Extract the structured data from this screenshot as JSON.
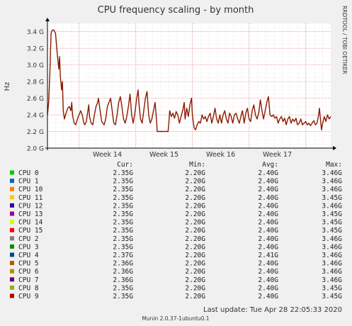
{
  "chart_data": {
    "type": "line",
    "title": "CPU frequency scaling - by month",
    "ylabel": "Hz",
    "side_label": "RRDTOOL / TOBI OETIKER",
    "ylim": [
      2.0,
      3.5
    ],
    "y_ticks": [
      {
        "v": 2.0,
        "label": "2.0 G"
      },
      {
        "v": 2.2,
        "label": "2.2 G"
      },
      {
        "v": 2.4,
        "label": "2.4 G"
      },
      {
        "v": 2.6,
        "label": "2.6 G"
      },
      {
        "v": 2.8,
        "label": "2.8 G"
      },
      {
        "v": 3.0,
        "label": "3.0 G"
      },
      {
        "v": 3.2,
        "label": "3.2 G"
      },
      {
        "v": 3.4,
        "label": "3.4 G"
      }
    ],
    "x_range": [
      0,
      35
    ],
    "x_ticks": [
      {
        "x": 7.4,
        "label": "Week 14"
      },
      {
        "x": 14.4,
        "label": "Week 15"
      },
      {
        "x": 21.4,
        "label": "Week 16"
      },
      {
        "x": 28.4,
        "label": "Week 17"
      }
    ],
    "series_color": "#8b1a00",
    "series": [
      {
        "name": "CPU 9",
        "points": [
          [
            0.0,
            2.4
          ],
          [
            0.15,
            2.55
          ],
          [
            0.3,
            2.9
          ],
          [
            0.45,
            3.38
          ],
          [
            0.6,
            3.42
          ],
          [
            0.8,
            3.42
          ],
          [
            1.0,
            3.38
          ],
          [
            1.2,
            3.15
          ],
          [
            1.4,
            2.95
          ],
          [
            1.5,
            3.1
          ],
          [
            1.6,
            2.85
          ],
          [
            1.75,
            2.7
          ],
          [
            1.85,
            2.8
          ],
          [
            1.95,
            2.45
          ],
          [
            2.1,
            2.35
          ],
          [
            2.3,
            2.42
          ],
          [
            2.5,
            2.48
          ],
          [
            2.7,
            2.5
          ],
          [
            2.9,
            2.45
          ],
          [
            3.0,
            2.55
          ],
          [
            3.1,
            2.4
          ],
          [
            3.3,
            2.3
          ],
          [
            3.5,
            2.28
          ],
          [
            3.7,
            2.35
          ],
          [
            3.9,
            2.4
          ],
          [
            4.1,
            2.45
          ],
          [
            4.3,
            2.4
          ],
          [
            4.5,
            2.3
          ],
          [
            4.6,
            2.28
          ],
          [
            4.8,
            2.32
          ],
          [
            5.0,
            2.45
          ],
          [
            5.1,
            2.52
          ],
          [
            5.2,
            2.38
          ],
          [
            5.4,
            2.3
          ],
          [
            5.6,
            2.28
          ],
          [
            5.8,
            2.4
          ],
          [
            6.0,
            2.5
          ],
          [
            6.2,
            2.55
          ],
          [
            6.3,
            2.6
          ],
          [
            6.5,
            2.45
          ],
          [
            6.7,
            2.32
          ],
          [
            7.0,
            2.28
          ],
          [
            7.2,
            2.35
          ],
          [
            7.4,
            2.5
          ],
          [
            7.6,
            2.55
          ],
          [
            7.8,
            2.6
          ],
          [
            8.0,
            2.45
          ],
          [
            8.2,
            2.3
          ],
          [
            8.4,
            2.28
          ],
          [
            8.6,
            2.4
          ],
          [
            8.8,
            2.55
          ],
          [
            9.0,
            2.62
          ],
          [
            9.2,
            2.5
          ],
          [
            9.4,
            2.35
          ],
          [
            9.6,
            2.3
          ],
          [
            9.8,
            2.38
          ],
          [
            10.0,
            2.5
          ],
          [
            10.2,
            2.65
          ],
          [
            10.4,
            2.4
          ],
          [
            10.6,
            2.3
          ],
          [
            10.8,
            2.42
          ],
          [
            11.0,
            2.58
          ],
          [
            11.2,
            2.7
          ],
          [
            11.3,
            2.55
          ],
          [
            11.5,
            2.35
          ],
          [
            11.7,
            2.3
          ],
          [
            11.9,
            2.45
          ],
          [
            12.1,
            2.6
          ],
          [
            12.3,
            2.68
          ],
          [
            12.5,
            2.4
          ],
          [
            12.7,
            2.3
          ],
          [
            12.9,
            2.35
          ],
          [
            13.1,
            2.45
          ],
          [
            13.3,
            2.55
          ],
          [
            13.5,
            2.3
          ],
          [
            13.55,
            2.2
          ],
          [
            14.1,
            2.2
          ],
          [
            14.6,
            2.2
          ],
          [
            14.9,
            2.2
          ],
          [
            15.0,
            2.3
          ],
          [
            15.1,
            2.45
          ],
          [
            15.3,
            2.38
          ],
          [
            15.5,
            2.42
          ],
          [
            15.7,
            2.36
          ],
          [
            15.9,
            2.44
          ],
          [
            16.1,
            2.4
          ],
          [
            16.3,
            2.3
          ],
          [
            16.5,
            2.38
          ],
          [
            16.7,
            2.45
          ],
          [
            16.9,
            2.55
          ],
          [
            17.0,
            2.35
          ],
          [
            17.2,
            2.48
          ],
          [
            17.4,
            2.38
          ],
          [
            17.6,
            2.52
          ],
          [
            17.8,
            2.6
          ],
          [
            17.9,
            2.4
          ],
          [
            18.1,
            2.25
          ],
          [
            18.3,
            2.22
          ],
          [
            18.5,
            2.28
          ],
          [
            18.7,
            2.32
          ],
          [
            18.9,
            2.3
          ],
          [
            19.1,
            2.4
          ],
          [
            19.3,
            2.35
          ],
          [
            19.5,
            2.38
          ],
          [
            19.7,
            2.32
          ],
          [
            19.9,
            2.38
          ],
          [
            20.1,
            2.42
          ],
          [
            20.3,
            2.3
          ],
          [
            20.5,
            2.38
          ],
          [
            20.7,
            2.48
          ],
          [
            20.9,
            2.35
          ],
          [
            21.1,
            2.3
          ],
          [
            21.3,
            2.4
          ],
          [
            21.5,
            2.3
          ],
          [
            21.7,
            2.4
          ],
          [
            21.9,
            2.45
          ],
          [
            22.1,
            2.35
          ],
          [
            22.3,
            2.3
          ],
          [
            22.5,
            2.42
          ],
          [
            22.7,
            2.38
          ],
          [
            22.9,
            2.3
          ],
          [
            23.1,
            2.4
          ],
          [
            23.3,
            2.42
          ],
          [
            23.5,
            2.35
          ],
          [
            23.7,
            2.3
          ],
          [
            23.9,
            2.38
          ],
          [
            24.1,
            2.45
          ],
          [
            24.3,
            2.3
          ],
          [
            24.5,
            2.42
          ],
          [
            24.7,
            2.48
          ],
          [
            24.9,
            2.35
          ],
          [
            25.1,
            2.32
          ],
          [
            25.3,
            2.45
          ],
          [
            25.5,
            2.52
          ],
          [
            25.7,
            2.4
          ],
          [
            25.9,
            2.35
          ],
          [
            26.1,
            2.42
          ],
          [
            26.3,
            2.58
          ],
          [
            26.5,
            2.45
          ],
          [
            26.7,
            2.35
          ],
          [
            26.9,
            2.45
          ],
          [
            27.1,
            2.55
          ],
          [
            27.3,
            2.62
          ],
          [
            27.5,
            2.4
          ],
          [
            27.7,
            2.38
          ],
          [
            27.9,
            2.4
          ],
          [
            28.1,
            2.36
          ],
          [
            28.3,
            2.38
          ],
          [
            28.5,
            2.3
          ],
          [
            28.7,
            2.35
          ],
          [
            28.9,
            2.38
          ],
          [
            29.1,
            2.32
          ],
          [
            29.3,
            2.36
          ],
          [
            29.5,
            2.28
          ],
          [
            29.7,
            2.35
          ],
          [
            29.9,
            2.38
          ],
          [
            30.1,
            2.3
          ],
          [
            30.3,
            2.35
          ],
          [
            30.5,
            2.32
          ],
          [
            30.7,
            2.36
          ],
          [
            30.9,
            2.28
          ],
          [
            31.1,
            2.3
          ],
          [
            31.3,
            2.35
          ],
          [
            31.5,
            2.28
          ],
          [
            31.7,
            2.3
          ],
          [
            31.9,
            2.32
          ],
          [
            32.1,
            2.28
          ],
          [
            32.3,
            2.3
          ],
          [
            32.5,
            2.27
          ],
          [
            32.7,
            2.3
          ],
          [
            32.9,
            2.33
          ],
          [
            33.1,
            2.28
          ],
          [
            33.3,
            2.3
          ],
          [
            33.5,
            2.4
          ],
          [
            33.6,
            2.48
          ],
          [
            33.7,
            2.38
          ],
          [
            33.85,
            2.22
          ],
          [
            34.0,
            2.3
          ],
          [
            34.2,
            2.38
          ],
          [
            34.4,
            2.32
          ],
          [
            34.6,
            2.4
          ],
          [
            34.8,
            2.35
          ],
          [
            35.0,
            2.38
          ]
        ]
      }
    ],
    "legend": {
      "headers": [
        "Cur:",
        "Min:",
        "Avg:",
        "Max:"
      ],
      "rows": [
        {
          "name": "CPU 0",
          "color": "#00cc00",
          "cur": "2.35G",
          "min": "2.20G",
          "avg": "2.40G",
          "max": "3.46G"
        },
        {
          "name": "CPU 1",
          "color": "#0066b3",
          "cur": "2.35G",
          "min": "2.20G",
          "avg": "2.40G",
          "max": "3.46G"
        },
        {
          "name": "CPU 10",
          "color": "#ff8000",
          "cur": "2.35G",
          "min": "2.20G",
          "avg": "2.40G",
          "max": "3.46G"
        },
        {
          "name": "CPU 11",
          "color": "#ffcc00",
          "cur": "2.35G",
          "min": "2.20G",
          "avg": "2.40G",
          "max": "3.45G"
        },
        {
          "name": "CPU 12",
          "color": "#330099",
          "cur": "2.35G",
          "min": "2.20G",
          "avg": "2.40G",
          "max": "3.46G"
        },
        {
          "name": "CPU 13",
          "color": "#990099",
          "cur": "2.35G",
          "min": "2.20G",
          "avg": "2.40G",
          "max": "3.45G"
        },
        {
          "name": "CPU 14",
          "color": "#ccff00",
          "cur": "2.35G",
          "min": "2.20G",
          "avg": "2.40G",
          "max": "3.45G"
        },
        {
          "name": "CPU 15",
          "color": "#ff0000",
          "cur": "2.35G",
          "min": "2.20G",
          "avg": "2.40G",
          "max": "3.45G"
        },
        {
          "name": "CPU 2",
          "color": "#808080",
          "cur": "2.35G",
          "min": "2.20G",
          "avg": "2.40G",
          "max": "3.46G"
        },
        {
          "name": "CPU 3",
          "color": "#008f00",
          "cur": "2.35G",
          "min": "2.20G",
          "avg": "2.40G",
          "max": "3.46G"
        },
        {
          "name": "CPU 4",
          "color": "#00487d",
          "cur": "2.37G",
          "min": "2.20G",
          "avg": "2.41G",
          "max": "3.46G"
        },
        {
          "name": "CPU 5",
          "color": "#b35a00",
          "cur": "2.36G",
          "min": "2.20G",
          "avg": "2.40G",
          "max": "3.46G"
        },
        {
          "name": "CPU 6",
          "color": "#b38f00",
          "cur": "2.36G",
          "min": "2.20G",
          "avg": "2.40G",
          "max": "3.46G"
        },
        {
          "name": "CPU 7",
          "color": "#6b006b",
          "cur": "2.36G",
          "min": "2.20G",
          "avg": "2.40G",
          "max": "3.46G"
        },
        {
          "name": "CPU 8",
          "color": "#8fb300",
          "cur": "2.35G",
          "min": "2.20G",
          "avg": "2.40G",
          "max": "3.45G"
        },
        {
          "name": "CPU 9",
          "color": "#b30000",
          "cur": "2.35G",
          "min": "2.20G",
          "avg": "2.40G",
          "max": "3.45G"
        }
      ]
    },
    "last_update": "Last update: Tue Apr 28 22:05:33 2020",
    "footer": "Munin 2.0.37-1ubuntu0.1"
  }
}
